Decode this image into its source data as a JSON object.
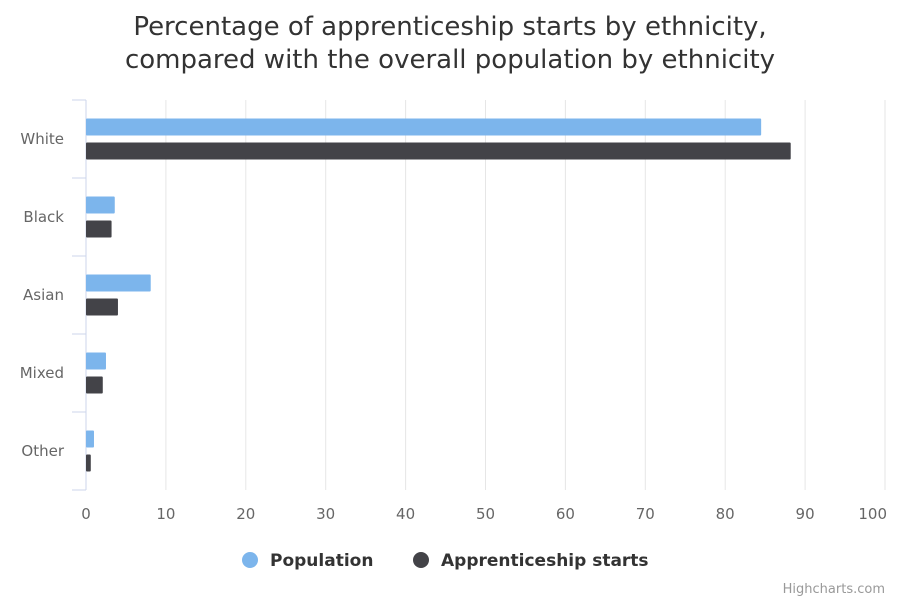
{
  "chart_data": {
    "type": "bar",
    "orientation": "horizontal",
    "title_lines": [
      "Percentage of apprenticeship starts by ethnicity,",
      "compared with the overall population by ethnicity"
    ],
    "categories": [
      "White",
      "Black",
      "Asian",
      "Mixed",
      "Other"
    ],
    "series": [
      {
        "name": "Population",
        "color": "#7cb5ec",
        "values": [
          84.5,
          3.6,
          8.1,
          2.5,
          1.0
        ]
      },
      {
        "name": "Apprenticeship starts",
        "color": "#434348",
        "values": [
          88.2,
          3.2,
          4.0,
          2.1,
          0.6
        ]
      }
    ],
    "xlim": [
      0,
      100
    ],
    "xticks": [
      "0",
      "10",
      "20",
      "30",
      "40",
      "50",
      "60",
      "70",
      "80",
      "90",
      "100"
    ],
    "grid": true,
    "legend_position": "bottom-center",
    "credit": "Highcharts.com"
  }
}
